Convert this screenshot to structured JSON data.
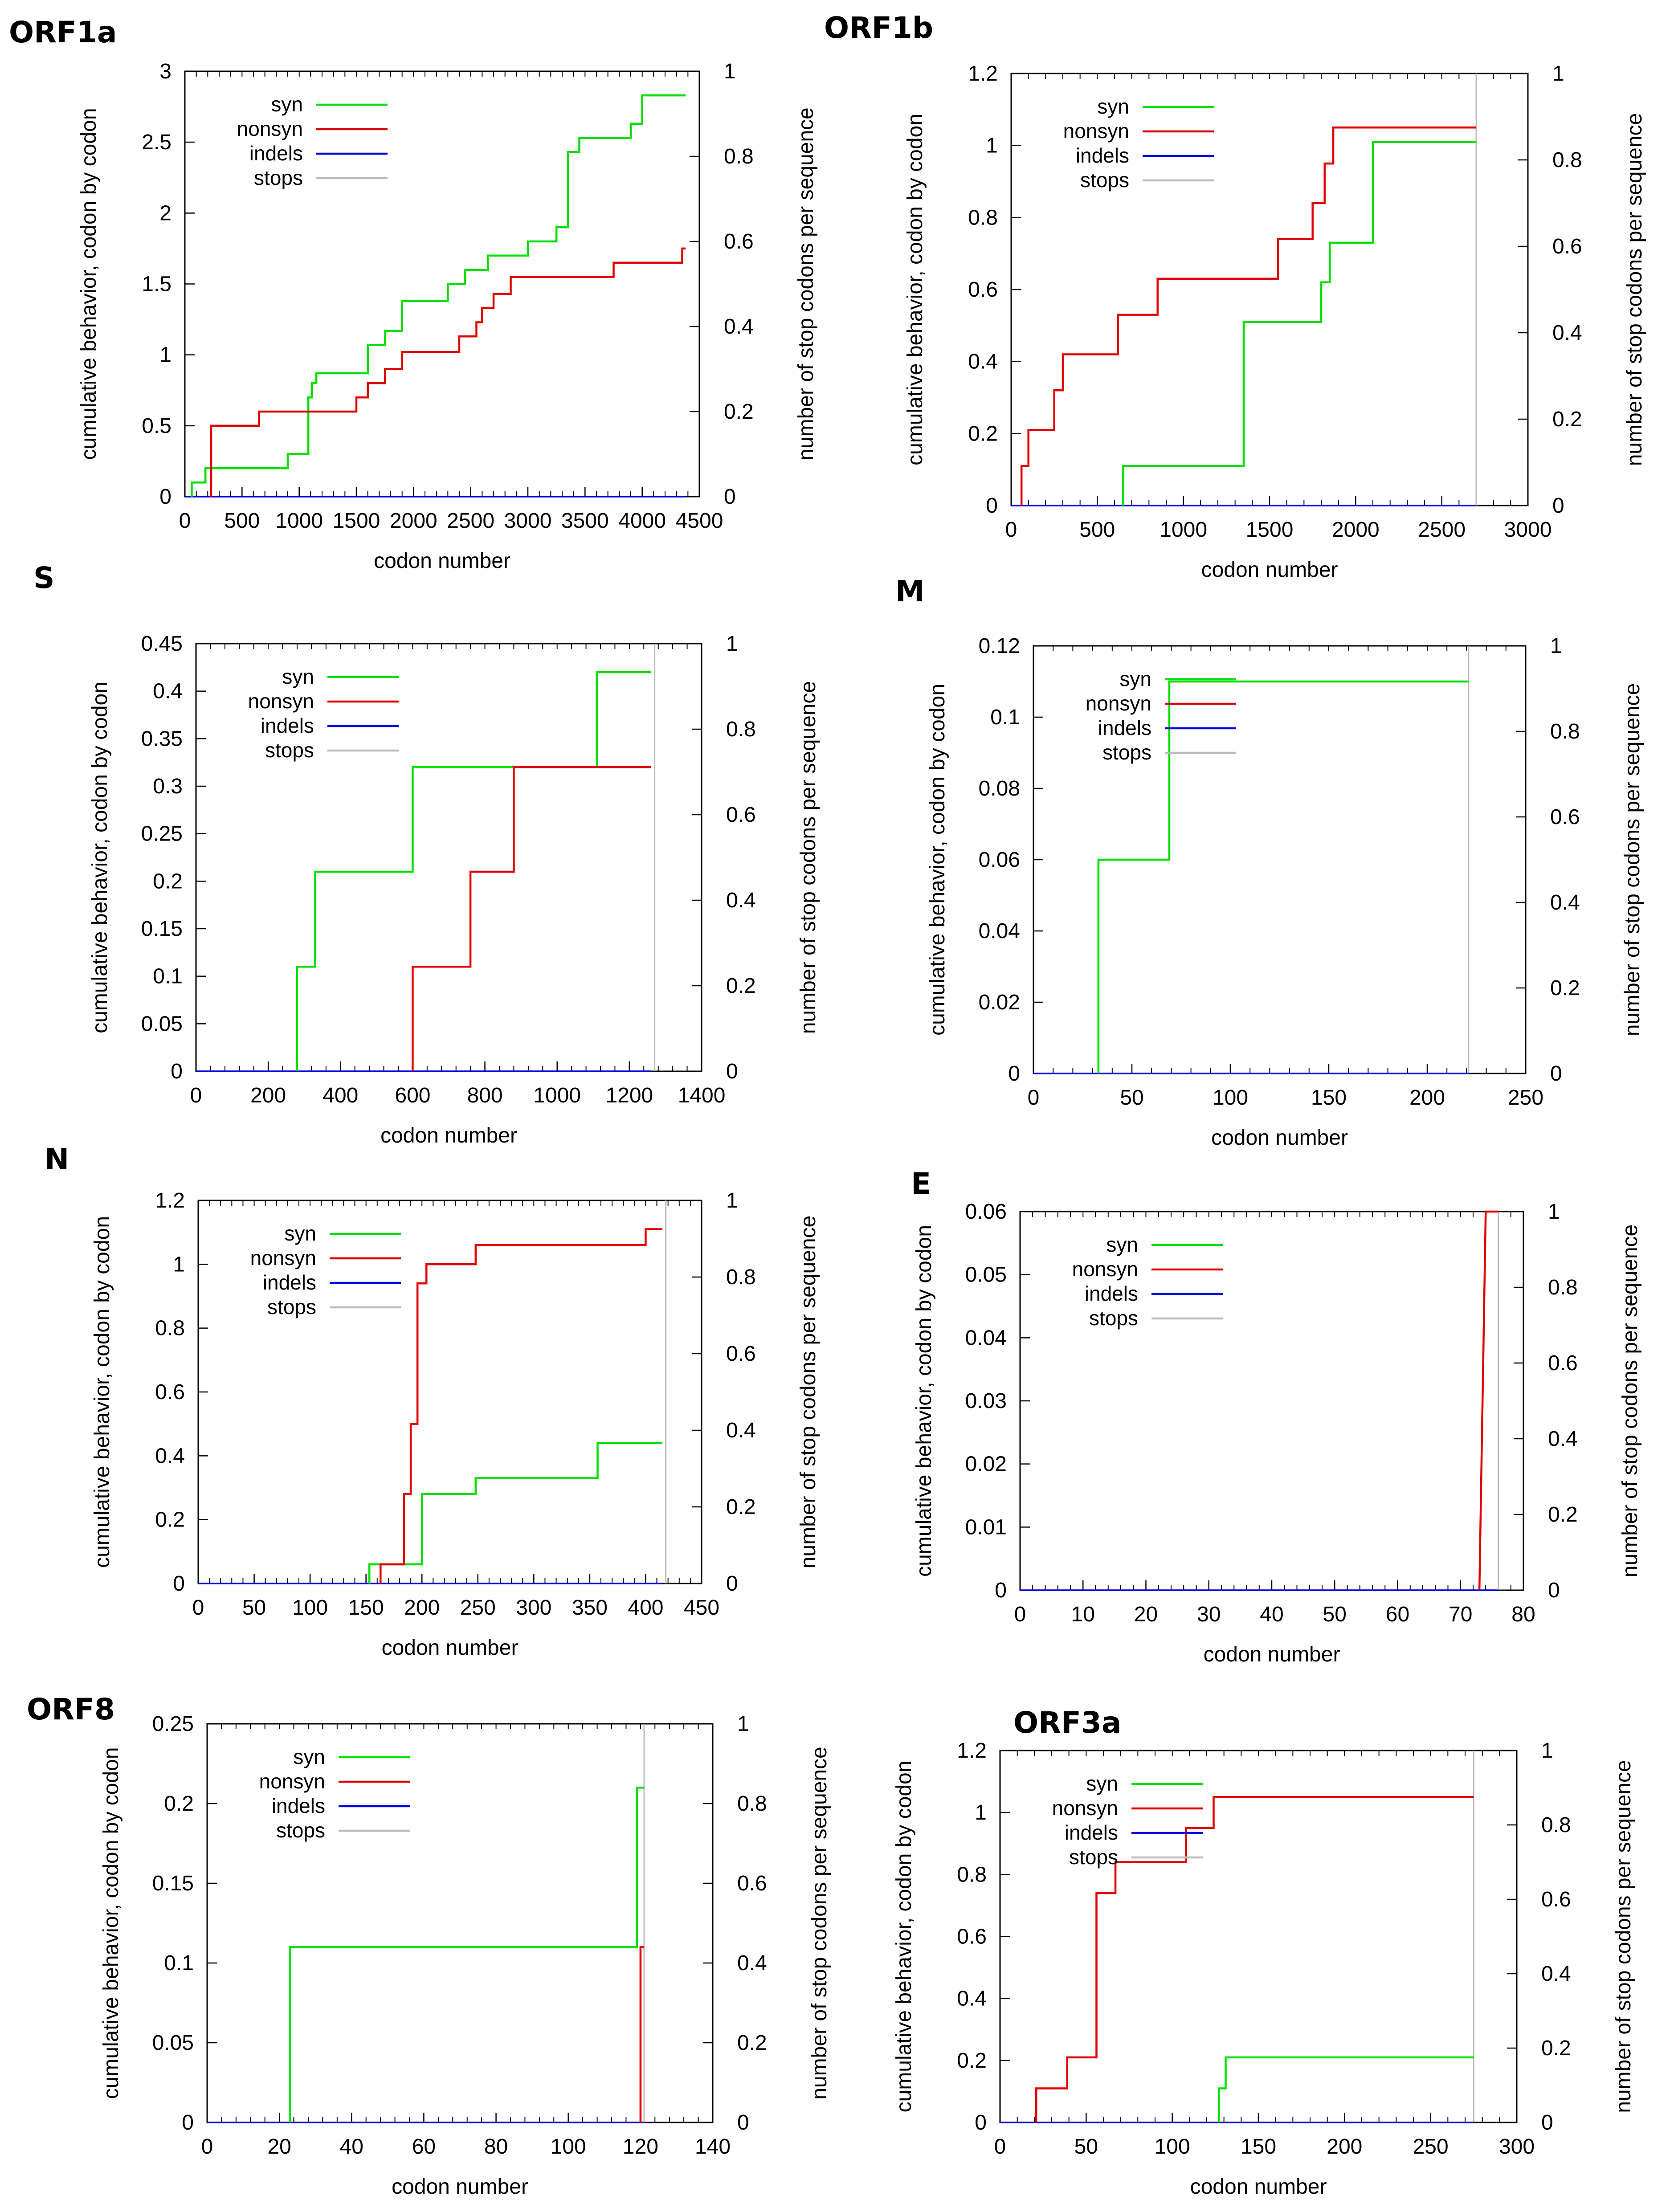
{
  "figure": {
    "xlabel": "codon number",
    "ylabel_left": "cumulative behavior, codon by codon",
    "ylabel_right": "number of stop codons per sequence"
  },
  "legend": [
    {
      "key": "syn",
      "label": "syn",
      "color": "#00e000"
    },
    {
      "key": "nonsyn",
      "label": "nonsyn",
      "color": "#e00000"
    },
    {
      "key": "indels",
      "label": "indels",
      "color": "#0000e0"
    },
    {
      "key": "stops",
      "label": "stops",
      "color": "#bbbbbb"
    }
  ],
  "chart_data": [
    {
      "id": "orf1a",
      "title": "ORF1a",
      "type": "line",
      "xlim": [
        0,
        4500
      ],
      "xticks": [
        0,
        500,
        1000,
        1500,
        2000,
        2500,
        3000,
        3500,
        4000,
        4500
      ],
      "ylim": [
        0,
        3
      ],
      "yticks": [
        0,
        0.5,
        1,
        1.5,
        2,
        2.5,
        3
      ],
      "ytick_labels": [
        "0",
        "0.5",
        "1",
        "1.5",
        "2",
        "2.5",
        "3"
      ],
      "y2lim": [
        0,
        1
      ],
      "y2ticks": [
        0,
        0.2,
        0.4,
        0.6,
        0.8,
        1
      ],
      "y2tick_labels": [
        "0",
        "0.2",
        "0.4",
        "0.6",
        "0.8",
        "1"
      ],
      "series": {
        "syn": [
          [
            60,
            0
          ],
          [
            60,
            0.1
          ],
          [
            180,
            0.1
          ],
          [
            180,
            0.2
          ],
          [
            900,
            0.2
          ],
          [
            900,
            0.3
          ],
          [
            1080,
            0.3
          ],
          [
            1080,
            0.7
          ],
          [
            1110,
            0.7
          ],
          [
            1110,
            0.8
          ],
          [
            1150,
            0.8
          ],
          [
            1150,
            0.87
          ],
          [
            1600,
            0.87
          ],
          [
            1600,
            1.07
          ],
          [
            1750,
            1.07
          ],
          [
            1750,
            1.17
          ],
          [
            1900,
            1.17
          ],
          [
            1900,
            1.38
          ],
          [
            2300,
            1.38
          ],
          [
            2300,
            1.5
          ],
          [
            2450,
            1.5
          ],
          [
            2450,
            1.6
          ],
          [
            2650,
            1.6
          ],
          [
            2650,
            1.7
          ],
          [
            3000,
            1.7
          ],
          [
            3000,
            1.8
          ],
          [
            3250,
            1.8
          ],
          [
            3250,
            1.9
          ],
          [
            3350,
            1.9
          ],
          [
            3350,
            2.43
          ],
          [
            3450,
            2.43
          ],
          [
            3450,
            2.53
          ],
          [
            3900,
            2.53
          ],
          [
            3900,
            2.63
          ],
          [
            4000,
            2.63
          ],
          [
            4000,
            2.83
          ],
          [
            4380,
            2.83
          ]
        ],
        "nonsyn": [
          [
            230,
            0
          ],
          [
            230,
            0.5
          ],
          [
            650,
            0.5
          ],
          [
            650,
            0.6
          ],
          [
            1500,
            0.6
          ],
          [
            1500,
            0.7
          ],
          [
            1600,
            0.7
          ],
          [
            1600,
            0.8
          ],
          [
            1750,
            0.8
          ],
          [
            1750,
            0.9
          ],
          [
            1900,
            0.9
          ],
          [
            1900,
            1.02
          ],
          [
            2400,
            1.02
          ],
          [
            2400,
            1.13
          ],
          [
            2550,
            1.13
          ],
          [
            2550,
            1.23
          ],
          [
            2600,
            1.23
          ],
          [
            2600,
            1.33
          ],
          [
            2700,
            1.33
          ],
          [
            2700,
            1.43
          ],
          [
            2850,
            1.43
          ],
          [
            2850,
            1.55
          ],
          [
            3750,
            1.55
          ],
          [
            3750,
            1.65
          ],
          [
            4350,
            1.65
          ],
          [
            4350,
            1.75
          ],
          [
            4380,
            1.75
          ]
        ],
        "indels": [
          [
            0,
            0
          ],
          [
            4380,
            0
          ]
        ]
      },
      "stops": []
    },
    {
      "id": "orf1b",
      "title": "ORF1b",
      "type": "line",
      "xlim": [
        0,
        3000
      ],
      "xticks": [
        0,
        500,
        1000,
        1500,
        2000,
        2500,
        3000
      ],
      "ylim": [
        0,
        1.2
      ],
      "yticks": [
        0,
        0.2,
        0.4,
        0.6,
        0.8,
        1,
        1.2
      ],
      "ytick_labels": [
        "0",
        "0.2",
        "0.4",
        "0.6",
        "0.8",
        "1",
        "1.2"
      ],
      "y2lim": [
        0,
        1
      ],
      "y2ticks": [
        0,
        0.2,
        0.4,
        0.6,
        0.8,
        1
      ],
      "y2tick_labels": [
        "0",
        "0.2",
        "0.4",
        "0.6",
        "0.8",
        "1"
      ],
      "series": {
        "syn": [
          [
            650,
            0
          ],
          [
            650,
            0.11
          ],
          [
            1350,
            0.11
          ],
          [
            1350,
            0.51
          ],
          [
            1800,
            0.51
          ],
          [
            1800,
            0.62
          ],
          [
            1850,
            0.62
          ],
          [
            1850,
            0.73
          ],
          [
            2100,
            0.73
          ],
          [
            2100,
            1.01
          ],
          [
            2700,
            1.01
          ]
        ],
        "nonsyn": [
          [
            60,
            0
          ],
          [
            60,
            0.11
          ],
          [
            100,
            0.11
          ],
          [
            100,
            0.21
          ],
          [
            250,
            0.21
          ],
          [
            250,
            0.32
          ],
          [
            300,
            0.32
          ],
          [
            300,
            0.42
          ],
          [
            620,
            0.42
          ],
          [
            620,
            0.53
          ],
          [
            850,
            0.53
          ],
          [
            850,
            0.63
          ],
          [
            1550,
            0.63
          ],
          [
            1550,
            0.74
          ],
          [
            1750,
            0.74
          ],
          [
            1750,
            0.84
          ],
          [
            1820,
            0.84
          ],
          [
            1820,
            0.95
          ],
          [
            1870,
            0.95
          ],
          [
            1870,
            1.05
          ],
          [
            2700,
            1.05
          ]
        ],
        "indels": [
          [
            0,
            0
          ],
          [
            2700,
            0
          ]
        ]
      },
      "stops": [
        2700
      ]
    },
    {
      "id": "s",
      "title": "S",
      "type": "line",
      "xlim": [
        0,
        1400
      ],
      "xticks": [
        0,
        200,
        400,
        600,
        800,
        1000,
        1200,
        1400
      ],
      "ylim": [
        0,
        0.45
      ],
      "yticks": [
        0,
        0.05,
        0.1,
        0.15,
        0.2,
        0.25,
        0.3,
        0.35,
        0.4,
        0.45
      ],
      "ytick_labels": [
        "0",
        "0.05",
        "0.1",
        "0.15",
        "0.2",
        "0.25",
        "0.3",
        "0.35",
        "0.4",
        "0.45"
      ],
      "y2lim": [
        0,
        1
      ],
      "y2ticks": [
        0,
        0.2,
        0.4,
        0.6,
        0.8,
        1
      ],
      "y2tick_labels": [
        "0",
        "0.2",
        "0.4",
        "0.6",
        "0.8",
        "1"
      ],
      "series": {
        "syn": [
          [
            280,
            0
          ],
          [
            280,
            0.11
          ],
          [
            330,
            0.11
          ],
          [
            330,
            0.21
          ],
          [
            600,
            0.21
          ],
          [
            600,
            0.32
          ],
          [
            1110,
            0.32
          ],
          [
            1110,
            0.42
          ],
          [
            1260,
            0.42
          ]
        ],
        "nonsyn": [
          [
            600,
            0
          ],
          [
            600,
            0.11
          ],
          [
            760,
            0.11
          ],
          [
            760,
            0.21
          ],
          [
            880,
            0.21
          ],
          [
            880,
            0.32
          ],
          [
            1260,
            0.32
          ]
        ],
        "indels": [
          [
            0,
            0
          ],
          [
            1260,
            0
          ]
        ]
      },
      "stops": [
        1270
      ]
    },
    {
      "id": "m",
      "title": "M",
      "type": "line",
      "xlim": [
        0,
        250
      ],
      "xticks": [
        0,
        50,
        100,
        150,
        200,
        250
      ],
      "ylim": [
        0,
        0.12
      ],
      "yticks": [
        0,
        0.02,
        0.04,
        0.06,
        0.08,
        0.1,
        0.12
      ],
      "ytick_labels": [
        "0",
        "0.02",
        "0.04",
        "0.06",
        "0.08",
        "0.1",
        "0.12"
      ],
      "y2lim": [
        0,
        1
      ],
      "y2ticks": [
        0,
        0.2,
        0.4,
        0.6,
        0.8,
        1
      ],
      "y2tick_labels": [
        "0",
        "0.2",
        "0.4",
        "0.6",
        "0.8",
        "1"
      ],
      "series": {
        "syn": [
          [
            33,
            0
          ],
          [
            33,
            0.06
          ],
          [
            69,
            0.06
          ],
          [
            69,
            0.11
          ],
          [
            221,
            0.11
          ]
        ],
        "nonsyn": [],
        "indels": [
          [
            0,
            0
          ],
          [
            221,
            0
          ]
        ]
      },
      "stops": [
        221
      ]
    },
    {
      "id": "n",
      "title": "N",
      "type": "line",
      "xlim": [
        0,
        450
      ],
      "xticks": [
        0,
        50,
        100,
        150,
        200,
        250,
        300,
        350,
        400,
        450
      ],
      "ylim": [
        0,
        1.2
      ],
      "yticks": [
        0,
        0.2,
        0.4,
        0.6,
        0.8,
        1,
        1.2
      ],
      "ytick_labels": [
        "0",
        "0.2",
        "0.4",
        "0.6",
        "0.8",
        "1",
        "1.2"
      ],
      "y2lim": [
        0,
        1
      ],
      "y2ticks": [
        0,
        0.2,
        0.4,
        0.6,
        0.8,
        1
      ],
      "y2tick_labels": [
        "0",
        "0.2",
        "0.4",
        "0.6",
        "0.8",
        "1"
      ],
      "series": {
        "syn": [
          [
            153,
            0
          ],
          [
            153,
            0.06
          ],
          [
            200,
            0.06
          ],
          [
            200,
            0.28
          ],
          [
            248,
            0.28
          ],
          [
            248,
            0.33
          ],
          [
            357,
            0.33
          ],
          [
            357,
            0.44
          ],
          [
            415,
            0.44
          ]
        ],
        "nonsyn": [
          [
            163,
            0
          ],
          [
            163,
            0.06
          ],
          [
            184,
            0.06
          ],
          [
            184,
            0.28
          ],
          [
            190,
            0.28
          ],
          [
            190,
            0.5
          ],
          [
            196,
            0.5
          ],
          [
            196,
            0.94
          ],
          [
            204,
            0.94
          ],
          [
            204,
            1.0
          ],
          [
            248,
            1.0
          ],
          [
            248,
            1.06
          ],
          [
            400,
            1.06
          ],
          [
            400,
            1.11
          ],
          [
            415,
            1.11
          ]
        ],
        "indels": [
          [
            0,
            0
          ],
          [
            415,
            0
          ]
        ]
      },
      "stops": [
        418
      ]
    },
    {
      "id": "e",
      "title": "E",
      "type": "line",
      "xlim": [
        0,
        80
      ],
      "xticks": [
        0,
        10,
        20,
        30,
        40,
        50,
        60,
        70,
        80
      ],
      "ylim": [
        0,
        0.06
      ],
      "yticks": [
        0,
        0.01,
        0.02,
        0.03,
        0.04,
        0.05,
        0.06
      ],
      "ytick_labels": [
        "0",
        "0.01",
        "0.02",
        "0.03",
        "0.04",
        "0.05",
        "0.06"
      ],
      "y2lim": [
        0,
        1
      ],
      "y2ticks": [
        0,
        0.2,
        0.4,
        0.6,
        0.8,
        1
      ],
      "y2tick_labels": [
        "0",
        "0.2",
        "0.4",
        "0.6",
        "0.8",
        "1"
      ],
      "series": {
        "syn": [],
        "nonsyn": [
          [
            73,
            0
          ],
          [
            74,
            0.06
          ],
          [
            76,
            0.06
          ]
        ],
        "indels": [
          [
            0,
            0
          ],
          [
            76,
            0
          ]
        ]
      },
      "stops": [
        76
      ]
    },
    {
      "id": "orf8",
      "title": "ORF8",
      "type": "line",
      "xlim": [
        0,
        140
      ],
      "xticks": [
        0,
        20,
        40,
        60,
        80,
        100,
        120,
        140
      ],
      "ylim": [
        0,
        0.25
      ],
      "yticks": [
        0,
        0.05,
        0.1,
        0.15,
        0.2,
        0.25
      ],
      "ytick_labels": [
        "0",
        "0.05",
        "0.1",
        "0.15",
        "0.2",
        "0.25"
      ],
      "y2lim": [
        0,
        1
      ],
      "y2ticks": [
        0,
        0.2,
        0.4,
        0.6,
        0.8,
        1
      ],
      "y2tick_labels": [
        "0",
        "0.2",
        "0.4",
        "0.6",
        "0.8",
        "1"
      ],
      "series": {
        "syn": [
          [
            23,
            0
          ],
          [
            23,
            0.11
          ],
          [
            119,
            0.11
          ],
          [
            119,
            0.21
          ],
          [
            121,
            0.21
          ]
        ],
        "nonsyn": [
          [
            120,
            0
          ],
          [
            120,
            0.11
          ],
          [
            121,
            0.11
          ]
        ],
        "indels": [
          [
            0,
            0
          ],
          [
            121,
            0
          ]
        ]
      },
      "stops": [
        121
      ]
    },
    {
      "id": "orf3a",
      "title": "ORF3a",
      "type": "line",
      "xlim": [
        0,
        300
      ],
      "xticks": [
        0,
        50,
        100,
        150,
        200,
        250,
        300
      ],
      "ylim": [
        0,
        1.2
      ],
      "yticks": [
        0,
        0.2,
        0.4,
        0.6,
        0.8,
        1,
        1.2
      ],
      "ytick_labels": [
        "0",
        "0.2",
        "0.4",
        "0.6",
        "0.8",
        "1",
        "1.2"
      ],
      "y2lim": [
        0,
        1
      ],
      "y2ticks": [
        0,
        0.2,
        0.4,
        0.6,
        0.8,
        1
      ],
      "y2tick_labels": [
        "0",
        "0.2",
        "0.4",
        "0.6",
        "0.8",
        "1"
      ],
      "series": {
        "syn": [
          [
            127,
            0
          ],
          [
            127,
            0.11
          ],
          [
            131,
            0.11
          ],
          [
            131,
            0.21
          ],
          [
            275,
            0.21
          ]
        ],
        "nonsyn": [
          [
            21,
            0
          ],
          [
            21,
            0.11
          ],
          [
            39,
            0.11
          ],
          [
            39,
            0.21
          ],
          [
            56,
            0.21
          ],
          [
            56,
            0.74
          ],
          [
            67,
            0.74
          ],
          [
            67,
            0.84
          ],
          [
            108,
            0.84
          ],
          [
            108,
            0.95
          ],
          [
            124,
            0.95
          ],
          [
            124,
            1.05
          ],
          [
            275,
            1.05
          ]
        ],
        "indels": [
          [
            0,
            0
          ],
          [
            275,
            0
          ]
        ]
      },
      "stops": [
        275
      ]
    }
  ]
}
